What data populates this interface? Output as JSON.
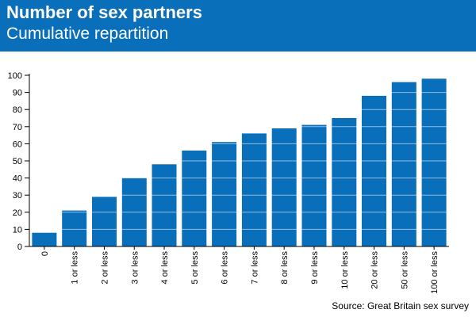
{
  "header": {
    "title": "Number of sex partners",
    "subtitle": "Cumulative repartition"
  },
  "footer": {
    "source": "Source: Great Britain sex survey"
  },
  "colors": {
    "header_bg": "#0a6fbb",
    "bar_fill": "#0a6fbb",
    "text": "#000000"
  },
  "chart_data": {
    "type": "bar",
    "title": "Number of sex partners",
    "subtitle": "Cumulative repartition",
    "categories": [
      "0",
      "1 or less",
      "2 or less",
      "3 or less",
      "4 or less",
      "5 or less",
      "6 or less",
      "7 or less",
      "8 or less",
      "9 or less",
      "10 or less",
      "20 or less",
      "50 or less",
      "100 or less"
    ],
    "values": [
      8,
      21,
      29,
      40,
      48,
      56,
      61,
      66,
      69,
      71,
      75,
      88,
      96,
      98
    ],
    "ylim": [
      0,
      100
    ],
    "yticks": [
      0,
      10,
      20,
      30,
      40,
      50,
      60,
      70,
      80,
      90,
      100
    ],
    "xlabel": "",
    "ylabel": "",
    "grid": true,
    "legend": "none"
  }
}
